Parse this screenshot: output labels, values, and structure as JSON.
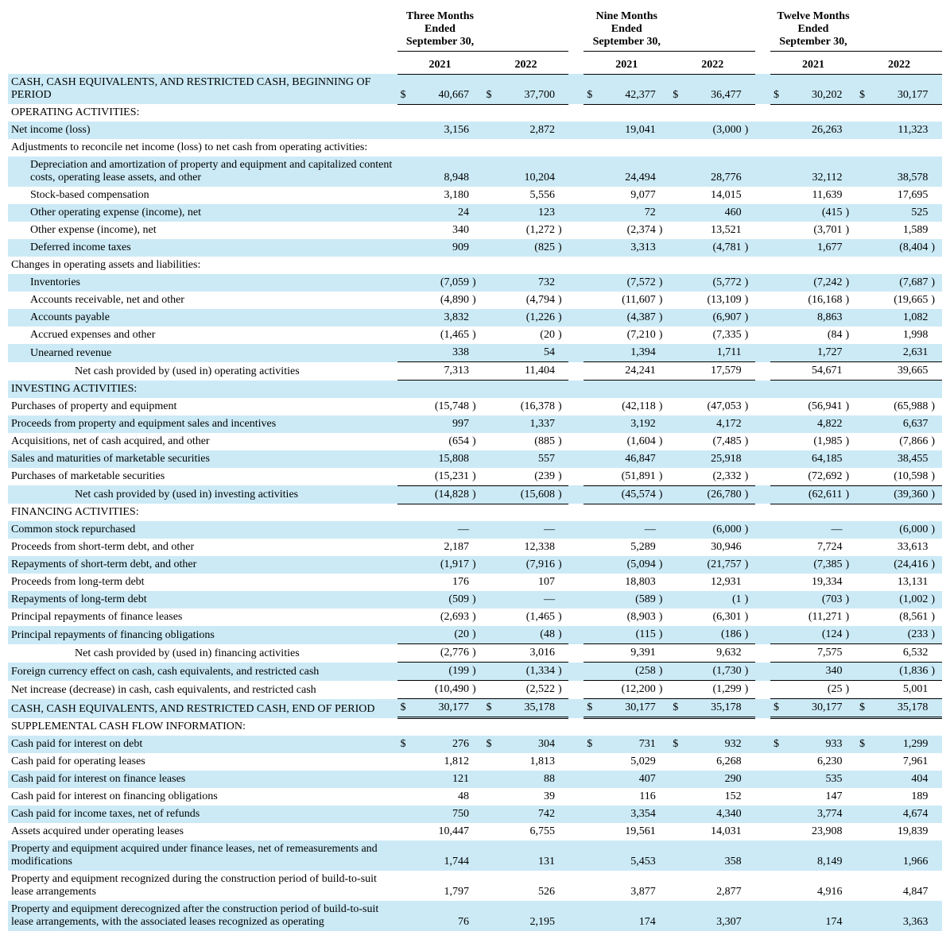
{
  "periods": [
    {
      "title_l1": "Three Months Ended",
      "title_l2": "September 30,",
      "years": [
        "2021",
        "2022"
      ]
    },
    {
      "title_l1": "Nine Months Ended",
      "title_l2": "September 30,",
      "years": [
        "2021",
        "2022"
      ]
    },
    {
      "title_l1": "Twelve Months Ended",
      "title_l2": "September 30,",
      "years": [
        "2021",
        "2022"
      ]
    }
  ],
  "colors": {
    "shade": "#cbeaf6",
    "text": "#000000",
    "rule": "#000000"
  },
  "rows": [
    {
      "k": "r0",
      "label": "CASH, CASH EQUIVALENTS, AND RESTRICTED CASH, BEGINNING OF PERIOD",
      "indent": 0,
      "shade": true,
      "dollar": true,
      "bbot": true,
      "v": [
        "40,667",
        "37,700",
        "42,377",
        "36,477",
        "30,202",
        "30,177"
      ]
    },
    {
      "k": "r1",
      "label": "OPERATING ACTIVITIES:",
      "indent": 0,
      "shade": false,
      "v": [
        "",
        "",
        "",
        "",
        "",
        ""
      ]
    },
    {
      "k": "r2",
      "label": "Net income (loss)",
      "indent": 0,
      "shade": true,
      "v": [
        "3,156",
        "2,872",
        "19,041",
        "(3,000)",
        "26,263",
        "11,323"
      ]
    },
    {
      "k": "r3",
      "label": "Adjustments to reconcile net income (loss) to net cash from operating activities:",
      "indent": 0,
      "shade": false,
      "v": [
        "",
        "",
        "",
        "",
        "",
        ""
      ]
    },
    {
      "k": "r4",
      "label": "Depreciation and amortization of property and equipment and capitalized content costs, operating lease assets, and other",
      "indent": 1,
      "shade": true,
      "v": [
        "8,948",
        "10,204",
        "24,494",
        "28,776",
        "32,112",
        "38,578"
      ]
    },
    {
      "k": "r5",
      "label": "Stock-based compensation",
      "indent": 1,
      "shade": false,
      "v": [
        "3,180",
        "5,556",
        "9,077",
        "14,015",
        "11,639",
        "17,695"
      ]
    },
    {
      "k": "r6",
      "label": "Other operating expense (income), net",
      "indent": 1,
      "shade": true,
      "v": [
        "24",
        "123",
        "72",
        "460",
        "(415)",
        "525"
      ]
    },
    {
      "k": "r7",
      "label": "Other expense (income), net",
      "indent": 1,
      "shade": false,
      "v": [
        "340",
        "(1,272)",
        "(2,374)",
        "13,521",
        "(3,701)",
        "1,589"
      ]
    },
    {
      "k": "r8",
      "label": "Deferred income taxes",
      "indent": 1,
      "shade": true,
      "v": [
        "909",
        "(825)",
        "3,313",
        "(4,781)",
        "1,677",
        "(8,404)"
      ]
    },
    {
      "k": "r9",
      "label": "Changes in operating assets and liabilities:",
      "indent": 0,
      "shade": false,
      "v": [
        "",
        "",
        "",
        "",
        "",
        ""
      ]
    },
    {
      "k": "r10",
      "label": "Inventories",
      "indent": 1,
      "shade": true,
      "v": [
        "(7,059)",
        "732",
        "(7,572)",
        "(5,772)",
        "(7,242)",
        "(7,687)"
      ]
    },
    {
      "k": "r11",
      "label": "Accounts receivable, net and other",
      "indent": 1,
      "shade": false,
      "v": [
        "(4,890)",
        "(4,794)",
        "(11,607)",
        "(13,109)",
        "(16,168)",
        "(19,665)"
      ]
    },
    {
      "k": "r12",
      "label": "Accounts payable",
      "indent": 1,
      "shade": true,
      "v": [
        "3,832",
        "(1,226)",
        "(4,387)",
        "(6,907)",
        "8,863",
        "1,082"
      ]
    },
    {
      "k": "r13",
      "label": "Accrued expenses and other",
      "indent": 1,
      "shade": false,
      "v": [
        "(1,465)",
        "(20)",
        "(7,210)",
        "(7,335)",
        "(84)",
        "1,998"
      ]
    },
    {
      "k": "r14",
      "label": "Unearned revenue",
      "indent": 1,
      "shade": true,
      "bbot": true,
      "v": [
        "338",
        "54",
        "1,394",
        "1,711",
        "1,727",
        "2,631"
      ]
    },
    {
      "k": "r15",
      "label": "Net cash provided by (used in) operating activities",
      "indent": 3,
      "shade": false,
      "bbot": true,
      "v": [
        "7,313",
        "11,404",
        "24,241",
        "17,579",
        "54,671",
        "39,665"
      ]
    },
    {
      "k": "r16",
      "label": "INVESTING ACTIVITIES:",
      "indent": 0,
      "shade": true,
      "v": [
        "",
        "",
        "",
        "",
        "",
        ""
      ]
    },
    {
      "k": "r17",
      "label": "Purchases of property and equipment",
      "indent": 0,
      "shade": false,
      "v": [
        "(15,748)",
        "(16,378)",
        "(42,118)",
        "(47,053)",
        "(56,941)",
        "(65,988)"
      ]
    },
    {
      "k": "r18",
      "label": "Proceeds from property and equipment sales and incentives",
      "indent": 0,
      "shade": true,
      "v": [
        "997",
        "1,337",
        "3,192",
        "4,172",
        "4,822",
        "6,637"
      ]
    },
    {
      "k": "r19",
      "label": "Acquisitions, net of cash acquired, and other",
      "indent": 0,
      "shade": false,
      "v": [
        "(654)",
        "(885)",
        "(1,604)",
        "(7,485)",
        "(1,985)",
        "(7,866)"
      ]
    },
    {
      "k": "r20",
      "label": "Sales and maturities of marketable securities",
      "indent": 0,
      "shade": true,
      "v": [
        "15,808",
        "557",
        "46,847",
        "25,918",
        "64,185",
        "38,455"
      ]
    },
    {
      "k": "r21",
      "label": "Purchases of marketable securities",
      "indent": 0,
      "shade": false,
      "bbot": true,
      "v": [
        "(15,231)",
        "(239)",
        "(51,891)",
        "(2,332)",
        "(72,692)",
        "(10,598)"
      ]
    },
    {
      "k": "r22",
      "label": "Net cash provided by (used in) investing activities",
      "indent": 3,
      "shade": true,
      "bbot": true,
      "v": [
        "(14,828)",
        "(15,608)",
        "(45,574)",
        "(26,780)",
        "(62,611)",
        "(39,360)"
      ]
    },
    {
      "k": "r23",
      "label": "FINANCING ACTIVITIES:",
      "indent": 0,
      "shade": false,
      "v": [
        "",
        "",
        "",
        "",
        "",
        ""
      ]
    },
    {
      "k": "r24",
      "label": "Common stock repurchased",
      "indent": 0,
      "shade": true,
      "v": [
        "—",
        "—",
        "—",
        "(6,000)",
        "—",
        "(6,000)"
      ]
    },
    {
      "k": "r25",
      "label": "Proceeds from short-term debt, and other",
      "indent": 0,
      "shade": false,
      "v": [
        "2,187",
        "12,338",
        "5,289",
        "30,946",
        "7,724",
        "33,613"
      ]
    },
    {
      "k": "r26",
      "label": "Repayments of short-term debt, and other",
      "indent": 0,
      "shade": true,
      "v": [
        "(1,917)",
        "(7,916)",
        "(5,094)",
        "(21,757)",
        "(7,385)",
        "(24,416)"
      ]
    },
    {
      "k": "r27",
      "label": "Proceeds from long-term debt",
      "indent": 0,
      "shade": false,
      "v": [
        "176",
        "107",
        "18,803",
        "12,931",
        "19,334",
        "13,131"
      ]
    },
    {
      "k": "r28",
      "label": "Repayments of long-term debt",
      "indent": 0,
      "shade": true,
      "v": [
        "(509)",
        "—",
        "(589)",
        "(1)",
        "(703)",
        "(1,002)"
      ]
    },
    {
      "k": "r29",
      "label": "Principal repayments of finance leases",
      "indent": 0,
      "shade": false,
      "v": [
        "(2,693)",
        "(1,465)",
        "(8,903)",
        "(6,301)",
        "(11,271)",
        "(8,561)"
      ]
    },
    {
      "k": "r30",
      "label": "Principal repayments of financing obligations",
      "indent": 0,
      "shade": true,
      "bbot": true,
      "v": [
        "(20)",
        "(48)",
        "(115)",
        "(186)",
        "(124)",
        "(233)"
      ]
    },
    {
      "k": "r31",
      "label": "Net cash provided by (used in) financing activities",
      "indent": 3,
      "shade": false,
      "bbot": true,
      "v": [
        "(2,776)",
        "3,016",
        "9,391",
        "9,632",
        "7,575",
        "6,532"
      ]
    },
    {
      "k": "r32",
      "label": "Foreign currency effect on cash, cash equivalents, and restricted cash",
      "indent": 0,
      "shade": true,
      "bbot": true,
      "v": [
        "(199)",
        "(1,334)",
        "(258)",
        "(1,730)",
        "340",
        "(1,836)"
      ]
    },
    {
      "k": "r33",
      "label": "Net increase (decrease) in cash, cash equivalents, and restricted cash",
      "indent": 0,
      "shade": false,
      "bbot": true,
      "v": [
        "(10,490)",
        "(2,522)",
        "(12,200)",
        "(1,299)",
        "(25)",
        "5,001"
      ]
    },
    {
      "k": "r34",
      "label": "CASH, CASH EQUIVALENTS, AND RESTRICTED CASH, END OF PERIOD",
      "indent": 0,
      "shade": true,
      "dollar": true,
      "dbl": true,
      "v": [
        "30,177",
        "35,178",
        "30,177",
        "35,178",
        "30,177",
        "35,178"
      ]
    },
    {
      "k": "r35",
      "label": "SUPPLEMENTAL CASH FLOW INFORMATION:",
      "indent": 0,
      "shade": false,
      "v": [
        "",
        "",
        "",
        "",
        "",
        ""
      ]
    },
    {
      "k": "r36",
      "label": "Cash paid for interest on debt",
      "indent": 0,
      "shade": true,
      "dollar": true,
      "v": [
        "276",
        "304",
        "731",
        "932",
        "933",
        "1,299"
      ]
    },
    {
      "k": "r37",
      "label": "Cash paid for operating leases",
      "indent": 0,
      "shade": false,
      "v": [
        "1,812",
        "1,813",
        "5,029",
        "6,268",
        "6,230",
        "7,961"
      ]
    },
    {
      "k": "r38",
      "label": "Cash paid for interest on finance leases",
      "indent": 0,
      "shade": true,
      "v": [
        "121",
        "88",
        "407",
        "290",
        "535",
        "404"
      ]
    },
    {
      "k": "r39",
      "label": "Cash paid for interest on financing obligations",
      "indent": 0,
      "shade": false,
      "v": [
        "48",
        "39",
        "116",
        "152",
        "147",
        "189"
      ]
    },
    {
      "k": "r40",
      "label": "Cash paid for income taxes, net of refunds",
      "indent": 0,
      "shade": true,
      "v": [
        "750",
        "742",
        "3,354",
        "4,340",
        "3,774",
        "4,674"
      ]
    },
    {
      "k": "r41",
      "label": "Assets acquired under operating leases",
      "indent": 0,
      "shade": false,
      "v": [
        "10,447",
        "6,755",
        "19,561",
        "14,031",
        "23,908",
        "19,839"
      ]
    },
    {
      "k": "r42",
      "label": "Property and equipment acquired under finance leases, net of remeasurements and modifications",
      "indent": 0,
      "shade": true,
      "v": [
        "1,744",
        "131",
        "5,453",
        "358",
        "8,149",
        "1,966"
      ]
    },
    {
      "k": "r43",
      "label": "Property and equipment recognized during the construction period of build-to-suit lease arrangements",
      "indent": 0,
      "shade": false,
      "v": [
        "1,797",
        "526",
        "3,877",
        "2,877",
        "4,916",
        "4,847"
      ]
    },
    {
      "k": "r44",
      "label": "Property and equipment derecognized after the construction period of build-to-suit lease arrangements, with the associated leases recognized as operating",
      "indent": 0,
      "shade": true,
      "v": [
        "76",
        "2,195",
        "174",
        "3,307",
        "174",
        "3,363"
      ]
    }
  ]
}
